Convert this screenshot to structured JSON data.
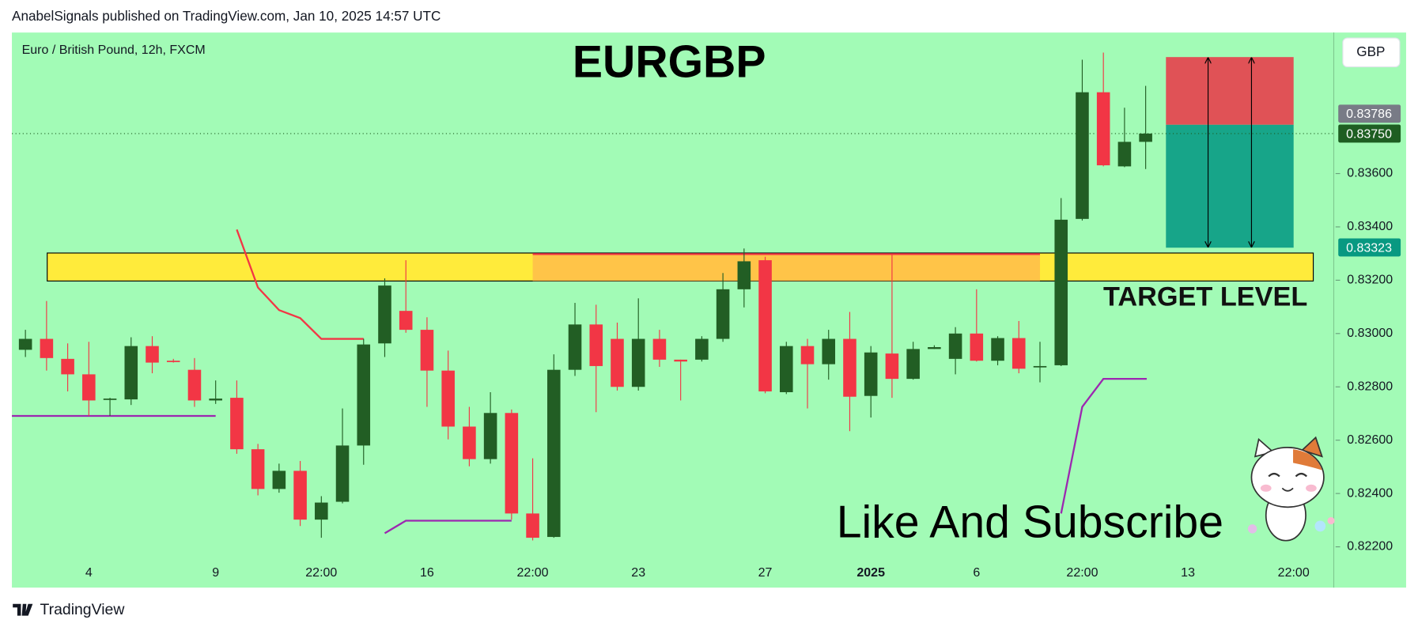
{
  "header": {
    "published": "AnabelSignals published on TradingView.com, Jan 10, 2025 14:57 UTC"
  },
  "footer": {
    "brand": "TradingView"
  },
  "chart_data": {
    "type": "candlestick",
    "title": "EURGBP",
    "subtitle": "Euro / British Pound, 12h, FXCM",
    "currency": "GBP",
    "annotations": [
      "TARGET LEVEL",
      "Like And Subscribe"
    ],
    "up_color": "#225e24",
    "down_color": "#f23645",
    "open": [
      0.82939,
      0.8298,
      0.82905,
      0.82847,
      0.82753,
      0.82753,
      0.82953,
      0.82898,
      0.82864,
      0.82749,
      0.82759,
      0.82566,
      0.82417,
      0.82485,
      0.82302,
      0.82369,
      0.8258,
      0.82963,
      0.83085,
      0.83014,
      0.82861,
      0.82651,
      0.82529,
      0.82702,
      0.82325,
      0.82237,
      0.82864,
      0.83034,
      0.8298,
      0.828,
      0.8298,
      0.82902,
      0.82902,
      0.8298,
      0.83166,
      0.83275,
      0.8278,
      0.82953,
      0.82885,
      0.8298,
      0.82766,
      0.82925,
      0.8283,
      0.82942,
      0.82905,
      0.83,
      0.82898,
      0.82983,
      0.82875,
      0.82881,
      0.8343,
      0.83905,
      0.83627,
      0.83719
    ],
    "high": [
      0.83014,
      0.83122,
      0.82963,
      0.82969,
      0.82759,
      0.82986,
      0.8299,
      0.82905,
      0.82908,
      0.82824,
      0.82824,
      0.82586,
      0.82512,
      0.82522,
      0.8239,
      0.82719,
      0.8298,
      0.83207,
      0.83275,
      0.83061,
      0.82936,
      0.82725,
      0.8278,
      0.82715,
      0.82532,
      0.82922,
      0.83115,
      0.83108,
      0.83041,
      0.83132,
      0.83014,
      0.82902,
      0.8299,
      0.83227,
      0.83319,
      0.83288,
      0.82969,
      0.8298,
      0.83014,
      0.83081,
      0.82953,
      0.83295,
      0.82969,
      0.82956,
      0.83024,
      0.83166,
      0.8299,
      0.83047,
      0.82969,
      0.83508,
      0.84027,
      0.84054,
      0.83847,
      0.83929
    ],
    "low": [
      0.82912,
      0.82861,
      0.82783,
      0.82691,
      0.82691,
      0.82732,
      0.82851,
      0.82891,
      0.82725,
      0.82736,
      0.82549,
      0.82393,
      0.82403,
      0.82278,
      0.82234,
      0.82363,
      0.82508,
      0.82912,
      0.83003,
      0.82725,
      0.82603,
      0.82502,
      0.82512,
      0.82302,
      0.82224,
      0.82234,
      0.82841,
      0.82705,
      0.82786,
      0.82786,
      0.82875,
      0.82749,
      0.82895,
      0.82969,
      0.83098,
      0.82776,
      0.82773,
      0.82719,
      0.82827,
      0.82634,
      0.82685,
      0.82759,
      0.82827,
      0.82942,
      0.82847,
      0.82895,
      0.82881,
      0.82851,
      0.82817,
      0.82878,
      0.83424,
      0.83627,
      0.83624,
      0.83617
    ],
    "close": [
      0.8298,
      0.82908,
      0.82847,
      0.82749,
      0.82756,
      0.82953,
      0.82891,
      0.82895,
      0.82749,
      0.82756,
      0.82566,
      0.82417,
      0.82485,
      0.82302,
      0.82366,
      0.8258,
      0.82959,
      0.8318,
      0.83014,
      0.82861,
      0.82651,
      0.82529,
      0.82702,
      0.82325,
      0.82234,
      0.82864,
      0.83034,
      0.82878,
      0.828,
      0.8298,
      0.82902,
      0.82895,
      0.8298,
      0.83166,
      0.83271,
      0.82783,
      0.82953,
      0.82885,
      0.8298,
      0.82763,
      0.82929,
      0.8283,
      0.82942,
      0.82949,
      0.83,
      0.82898,
      0.82983,
      0.82868,
      0.82878,
      0.83427,
      0.83905,
      0.83631,
      0.83719,
      0.8375
    ],
    "xlim": [
      -0.64,
      61.9
    ],
    "xticks": [
      {
        "value": 3,
        "label": "4"
      },
      {
        "value": 9,
        "label": "9"
      },
      {
        "value": 14,
        "label": "22:00"
      },
      {
        "value": 19,
        "label": "16"
      },
      {
        "value": 24,
        "label": "22:00"
      },
      {
        "value": 29,
        "label": "23"
      },
      {
        "value": 35,
        "label": "27"
      },
      {
        "value": 40,
        "label": "2025"
      },
      {
        "value": 45,
        "label": "6"
      },
      {
        "value": 50,
        "label": "22:00"
      },
      {
        "value": 55,
        "label": "13"
      },
      {
        "value": 60,
        "label": "22:00"
      }
    ],
    "ylim": [
      0.82047,
      0.84129
    ],
    "yticks": [
      {
        "value": 0.836,
        "label": "0.83600"
      },
      {
        "value": 0.834,
        "label": "0.83400"
      },
      {
        "value": 0.832,
        "label": "0.83200"
      },
      {
        "value": 0.83,
        "label": "0.83000"
      },
      {
        "value": 0.828,
        "label": "0.82800"
      },
      {
        "value": 0.826,
        "label": "0.82600"
      },
      {
        "value": 0.824,
        "label": "0.82400"
      },
      {
        "value": 0.822,
        "label": "0.82200"
      }
    ],
    "price_labels": [
      {
        "value": 0.83786,
        "color": "#787b86"
      },
      {
        "value": 0.8375,
        "label": "0.83750",
        "color": "#1e5e22"
      },
      {
        "value": 0.83323,
        "color": "#089981"
      }
    ],
    "zones": [
      {
        "color": "#ffeb3b",
        "x": [
          1.03,
          60.93
        ],
        "y": [
          0.83197,
          0.83302
        ]
      },
      {
        "color": "#ffb74d",
        "x": [
          24,
          48
        ],
        "y": [
          0.83197,
          0.83298
        ]
      }
    ],
    "lines": [
      {
        "color": "#9c27b0",
        "x": [
          -0.64,
          9
        ],
        "y": [
          0.82691,
          0.82691
        ]
      },
      {
        "color": "#9c27b0",
        "x": [
          17,
          18,
          23
        ],
        "y": [
          0.82251,
          0.82298,
          0.82298
        ]
      },
      {
        "color": "#9c27b0",
        "x": [
          49,
          50,
          51,
          53.05
        ],
        "y": [
          0.82325,
          0.82725,
          0.8283,
          0.8283
        ]
      },
      {
        "color": "#f23645",
        "x": [
          10,
          11,
          12,
          13,
          14,
          16
        ],
        "y": [
          0.8339,
          0.83173,
          0.83088,
          0.83058,
          0.8298,
          0.8298
        ]
      },
      {
        "color": "#f23645",
        "x": [
          24,
          48
        ],
        "y": [
          0.83298,
          0.83298
        ]
      }
    ],
    "position": {
      "x": [
        53.96,
        60.0
      ],
      "stop": 0.84037,
      "entry": 0.83783,
      "target": 0.83322,
      "stop_color": "#e05256",
      "target_color": "#17a589"
    },
    "grid": false
  }
}
